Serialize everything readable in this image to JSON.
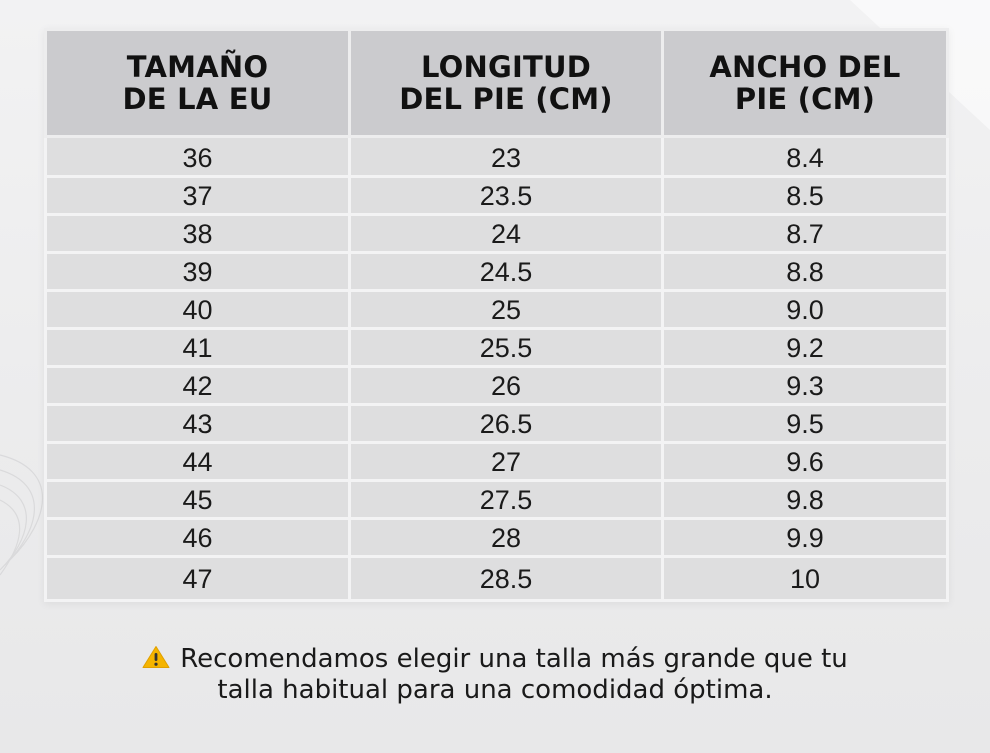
{
  "table": {
    "headers": [
      "TAMAÑO\nDE LA EU",
      "LONGITUD\nDEL PIE (CM)",
      "ANCHO DEL\nPIE (CM)"
    ],
    "rows": [
      [
        "36",
        "23",
        "8.4"
      ],
      [
        "37",
        "23.5",
        "8.5"
      ],
      [
        "38",
        "24",
        "8.7"
      ],
      [
        "39",
        "24.5",
        "8.8"
      ],
      [
        "40",
        "25",
        "9.0"
      ],
      [
        "41",
        "25.5",
        "9.2"
      ],
      [
        "42",
        "26",
        "9.3"
      ],
      [
        "43",
        "26.5",
        "9.5"
      ],
      [
        "44",
        "27",
        "9.6"
      ],
      [
        "45",
        "27.5",
        "9.8"
      ],
      [
        "46",
        "28",
        "9.9"
      ],
      [
        "47",
        "28.5",
        "10"
      ]
    ]
  },
  "note": {
    "icon": "warning-icon",
    "line1": "Recomendamos elegir una talla más grande que tu",
    "line2": "talla habitual para una comodidad óptima."
  },
  "colors": {
    "header_bg": "#cbcbce",
    "cell_bg": "#dededf",
    "grid_line": "#f3f3f4",
    "warning_yellow": "#f5b400"
  }
}
